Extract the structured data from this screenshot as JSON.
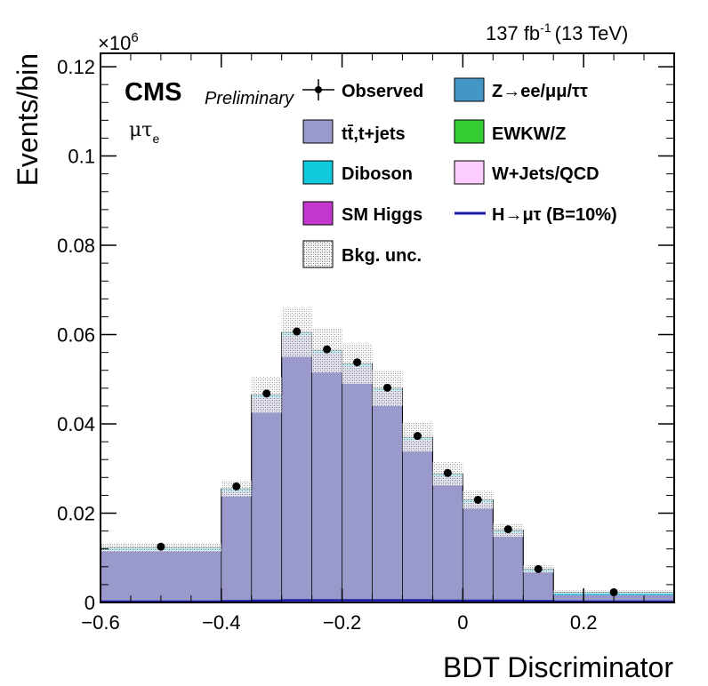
{
  "header": {
    "lumi_label": "137 fb",
    "lumi_exp": "-1",
    "lumi_energy": "(13 TeV)",
    "cms_label": "CMS",
    "prelim_label": "Preliminary",
    "channel_main": "μτ",
    "channel_sub": "e",
    "multiplier_prefix": "×10",
    "multiplier_exp": "6"
  },
  "legend": {
    "observed": "Observed",
    "zll": "Z→ee/μμ/ττ",
    "ttbar": "tt̄,t+jets",
    "ewk": "EWKW/Z",
    "diboson": "Diboson",
    "wjets": "W+Jets/QCD",
    "higgs": "SM Higgs",
    "signal": "H→μτ (B=10%)",
    "unc": "Bkg. unc."
  },
  "colors": {
    "ttbar": "#9999cc",
    "zll": "#4496c8",
    "ewk": "#33cc33",
    "diboson": "#12cadd",
    "wjets": "#fcccfe",
    "higgs": "#c339ce",
    "signal": "#1a1aa6",
    "unc": "#cccccc"
  },
  "chart_data": {
    "type": "bar",
    "xlabel": "BDT Discriminator",
    "ylabel": "Events/bin",
    "xlim": [
      -0.6,
      0.35
    ],
    "ylim": [
      0,
      0.123
    ],
    "y_scale_note": "×10^6",
    "x_ticks": [
      "−0.6",
      "−0.4",
      "−0.2",
      "0",
      "0.2"
    ],
    "y_ticks": [
      "0",
      "0.02",
      "0.04",
      "0.06",
      "0.08",
      "0.1",
      "0.12"
    ],
    "bin_edges": [
      -0.6,
      -0.4,
      -0.35,
      -0.3,
      -0.25,
      -0.2,
      -0.15,
      -0.1,
      -0.05,
      0.0,
      0.05,
      0.1,
      0.15,
      0.35
    ],
    "stack_total": [
      0.0123,
      0.0255,
      0.0465,
      0.0605,
      0.0565,
      0.0535,
      0.048,
      0.037,
      0.0288,
      0.023,
      0.0162,
      0.0075,
      0.0023
    ],
    "uncertainty": [
      0.0009,
      0.0018,
      0.004,
      0.0055,
      0.005,
      0.0045,
      0.004,
      0.0032,
      0.0026,
      0.002,
      0.0015,
      0.0008,
      0.0004
    ],
    "series": [
      {
        "name": "Observed",
        "x": [
          -0.5,
          -0.375,
          -0.325,
          -0.275,
          -0.225,
          -0.175,
          -0.125,
          -0.075,
          -0.025,
          0.025,
          0.075,
          0.125,
          0.25
        ],
        "values": [
          0.0125,
          0.026,
          0.0468,
          0.0607,
          0.0567,
          0.0538,
          0.0481,
          0.0373,
          0.029,
          0.023,
          0.0164,
          0.0075,
          0.0023
        ]
      },
      {
        "name": "H→μτ (B=10%)",
        "values": [
          0.0002,
          0.0003,
          0.0004,
          0.0005,
          0.0005,
          0.0005,
          0.0005,
          0.0005,
          0.0004,
          0.0004,
          0.0004,
          0.0003,
          0.0002
        ]
      }
    ],
    "grid": false,
    "legend_position": "top"
  }
}
